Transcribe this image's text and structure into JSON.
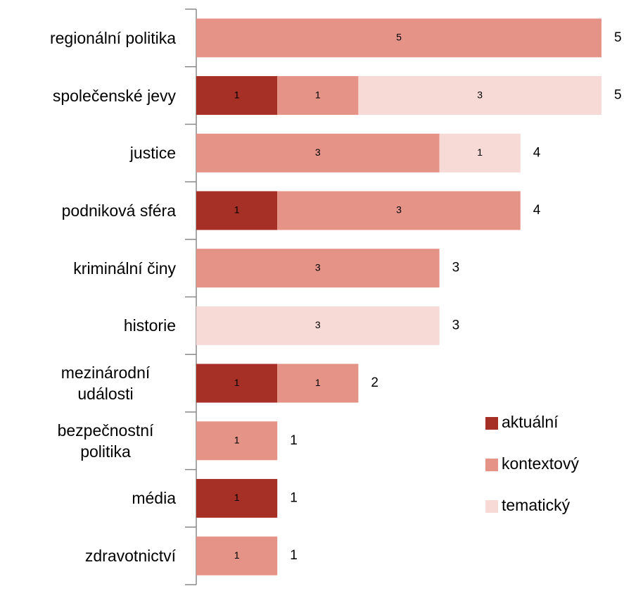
{
  "chart_data": {
    "type": "stacked-barh",
    "categories": [
      "regionální politika",
      "společenské jevy",
      "justice",
      "podniková sféra",
      "kriminální činy",
      "historie",
      "mezinárodní události",
      "bezpečnostní politika",
      "média",
      "zdravotnictví"
    ],
    "series": [
      {
        "name": "aktuální",
        "color": "#a62f26",
        "values": [
          null,
          1,
          null,
          1,
          null,
          null,
          1,
          null,
          1,
          null
        ]
      },
      {
        "name": "kontextový",
        "color": "#e59287",
        "values": [
          5,
          1,
          3,
          3,
          3,
          null,
          1,
          1,
          null,
          1
        ]
      },
      {
        "name": "tematický",
        "color": "#f7d9d5",
        "values": [
          null,
          3,
          1,
          null,
          null,
          3,
          null,
          null,
          null,
          null
        ]
      }
    ],
    "totals": [
      5,
      5,
      4,
      4,
      3,
      3,
      2,
      1,
      1,
      1
    ],
    "xlim": [
      0,
      5
    ],
    "legend": "right"
  }
}
